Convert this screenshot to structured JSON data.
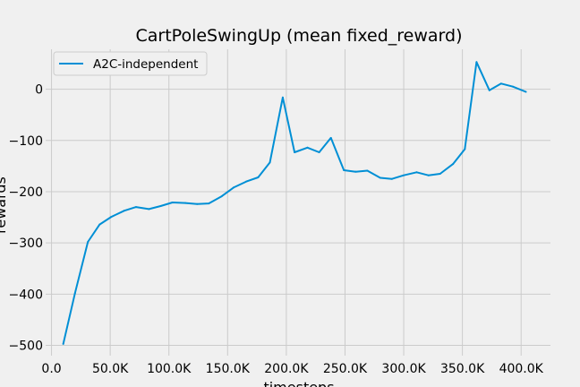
{
  "chart_data": {
    "type": "line",
    "title": "CartPoleSwingUp (mean fixed_reward)",
    "xlabel": "timesteps",
    "ylabel": "rewards",
    "xlim": [
      -5000,
      425000
    ],
    "ylim": [
      -520,
      78
    ],
    "grid": true,
    "legend_position": "top-left",
    "x_ticks": [
      0,
      50000,
      100000,
      150000,
      200000,
      250000,
      300000,
      350000,
      400000
    ],
    "x_tick_labels": [
      "0.0",
      "50.0K",
      "100.0K",
      "150.0K",
      "200.0K",
      "250.0K",
      "300.0K",
      "350.0K",
      "400.0K"
    ],
    "y_ticks": [
      -500,
      -400,
      -300,
      -200,
      -100,
      0
    ],
    "y_tick_labels": [
      "−500",
      "−400",
      "−300",
      "−200",
      "−100",
      "0"
    ],
    "series": [
      {
        "name": "A2C-independent",
        "color": "#008fd5",
        "x": [
          10000,
          20000,
          31000,
          41000,
          51000,
          62000,
          72000,
          83000,
          93000,
          103000,
          114000,
          124000,
          134000,
          145000,
          155000,
          166000,
          176000,
          186000,
          197000,
          207000,
          218000,
          228000,
          238000,
          249000,
          259000,
          269000,
          280000,
          290000,
          300000,
          311000,
          321000,
          331000,
          342000,
          352000,
          362000,
          373000,
          383000,
          393000,
          404000
        ],
        "y": [
          -497,
          -398,
          -298,
          -264,
          -249,
          -237,
          -230,
          -234,
          -228,
          -221,
          -222,
          -224,
          -223,
          -209,
          -192,
          -180,
          -172,
          -143,
          -16,
          -123,
          -114,
          -123,
          -95,
          -158,
          -161,
          -159,
          -173,
          -175,
          -168,
          -162,
          -168,
          -165,
          -146,
          -117,
          53,
          -2,
          11,
          5,
          -5
        ]
      }
    ]
  }
}
